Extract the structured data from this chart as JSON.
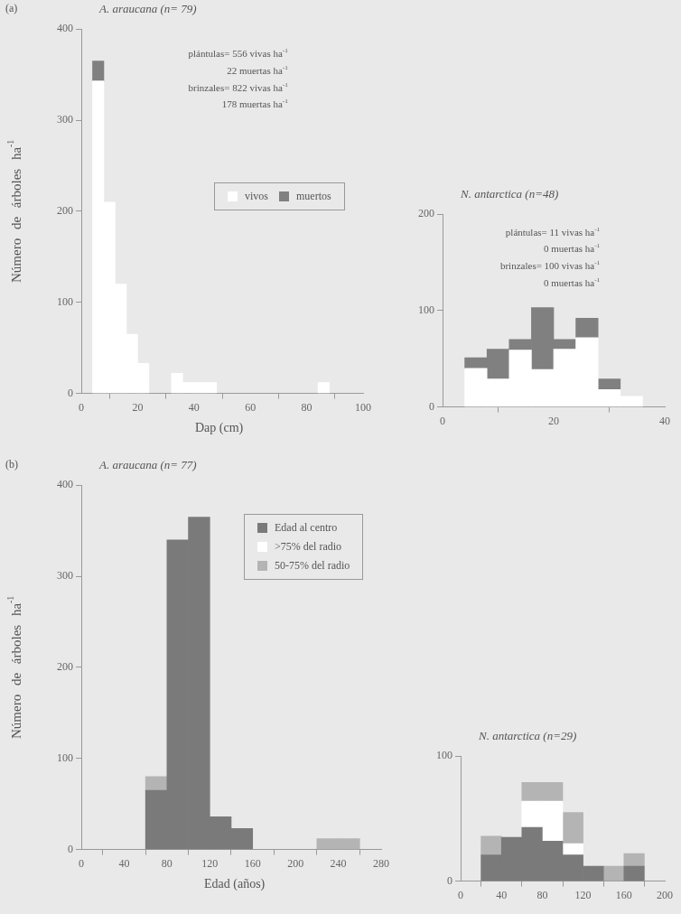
{
  "chart_data": [
    {
      "type": "bar",
      "title": "A. araucana (n= 79)",
      "xlabel": "Dap (cm)",
      "ylabel": "Número de árboles ha$^{-1}$",
      "annotations": [
        "(a)",
        "plántulas= 556 vivas ha$^{-1}$",
        "22 muertas ha$^{-1}$",
        "brinzales= 822 vivas ha$^{-1}$",
        "178 muertas ha$^{-1}$"
      ],
      "x": [
        6,
        10,
        14,
        18,
        22,
        26,
        30,
        34,
        38,
        42,
        46,
        50,
        54,
        58,
        62,
        66,
        70,
        74,
        78,
        82,
        86
      ],
      "stacked": true,
      "legend": "right",
      "xlim": [
        0,
        100
      ],
      "xticks": [
        0,
        20,
        40,
        60,
        80,
        100
      ],
      "ylim": [
        0,
        400
      ],
      "yticks": [
        0,
        100,
        200,
        300,
        400
      ],
      "series": [
        {
          "name": "vivos",
          "color": "#ffffff",
          "values": [
            343,
            210,
            120,
            65,
            33,
            0,
            0,
            22,
            12,
            12,
            12,
            0,
            0,
            0,
            0,
            0,
            0,
            0,
            0,
            0,
            12
          ]
        },
        {
          "name": "muertos",
          "color": "#808080",
          "values": [
            22,
            0,
            0,
            0,
            0,
            0,
            0,
            0,
            0,
            0,
            0,
            0,
            0,
            0,
            0,
            0,
            0,
            0,
            0,
            0,
            0
          ]
        }
      ]
    },
    {
      "type": "bar",
      "title": "N. antarctica (n=48)",
      "annotations": [
        "plántulas=  11 vivas ha$^{-1}$",
        "0 muertas ha$^{-1}$",
        "brinzales= 100 vivas ha$^{-1}$",
        "0 muertas ha$^{-1}$"
      ],
      "x": [
        6,
        10,
        14,
        18,
        22,
        26,
        30,
        34
      ],
      "stacked": true,
      "xlim": [
        0,
        40
      ],
      "xticks": [
        0,
        20,
        40
      ],
      "ylim": [
        0,
        200
      ],
      "yticks": [
        0,
        100,
        200
      ],
      "series": [
        {
          "color": "#ffffff",
          "values": [
            40,
            29,
            59,
            39,
            60,
            72,
            18,
            11
          ]
        },
        {
          "color": "#808080",
          "values": [
            11,
            31,
            11,
            64,
            10,
            20,
            11,
            0
          ]
        }
      ]
    },
    {
      "type": "bar",
      "title": "A. araucana (n= 77)",
      "xlabel": "Edad (años)",
      "ylabel": "Número de árboles ha$^{-1}$",
      "annotations": [
        "(b)"
      ],
      "x": [
        70,
        90,
        110,
        130,
        150,
        170,
        190,
        210,
        230,
        250
      ],
      "stacked": true,
      "legend": "top right",
      "xlim": [
        0,
        280
      ],
      "xticks": [
        0,
        40,
        80,
        120,
        160,
        200,
        240,
        280
      ],
      "ylim": [
        0,
        400
      ],
      "yticks": [
        0,
        100,
        200,
        300,
        400
      ],
      "series": [
        {
          "name": "Edad al centro",
          "color": "#7a7a7a",
          "values": [
            65,
            340,
            365,
            36,
            23,
            0,
            0,
            0,
            0,
            0
          ]
        },
        {
          "name": ">75% del radio",
          "color": "#ffffff",
          "values": [
            0,
            0,
            0,
            0,
            0,
            0,
            0,
            0,
            0,
            0
          ]
        },
        {
          "name": "50-75% del radio",
          "color": "#b4b4b4",
          "values": [
            15,
            0,
            0,
            0,
            0,
            0,
            0,
            0,
            12,
            12
          ]
        }
      ]
    },
    {
      "type": "bar",
      "title": "N. antarctica (n=29)",
      "x": [
        30,
        50,
        70,
        90,
        110,
        130,
        150,
        170
      ],
      "stacked": true,
      "xlim": [
        0,
        200
      ],
      "xticks": [
        0,
        40,
        80,
        120,
        160,
        200
      ],
      "ylim": [
        0,
        100
      ],
      "yticks": [
        0,
        100
      ],
      "series": [
        {
          "color": "#7a7a7a",
          "values": [
            21,
            35,
            43,
            32,
            21,
            12,
            0,
            12
          ]
        },
        {
          "color": "#ffffff",
          "values": [
            0,
            0,
            21,
            32,
            9,
            0,
            0,
            0
          ]
        },
        {
          "color": "#b4b4b4",
          "values": [
            15,
            0,
            15,
            15,
            25,
            0,
            12,
            10
          ]
        }
      ]
    }
  ]
}
